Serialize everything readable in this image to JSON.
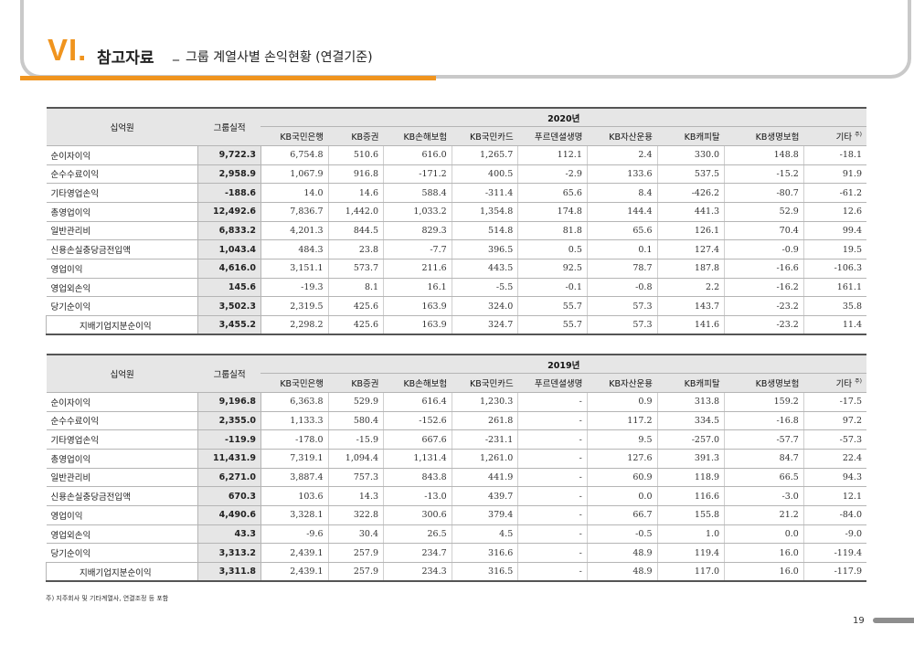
{
  "header": {
    "section_number": "VI.",
    "title": "참고자료",
    "separator": "_",
    "subtitle": "그룹 계열사별 손익현황 (연결기준)"
  },
  "columns": {
    "unit_label": "십억원",
    "group_label": "그룹실적",
    "companies": [
      "KB국민은행",
      "KB증권",
      "KB손해보험",
      "KB국민카드",
      "푸르덴셜생명",
      "KB자산운용",
      "KB캐피탈",
      "KB생명보험",
      "기타"
    ],
    "footnote_marker": "주)"
  },
  "tables": [
    {
      "year": "2020년",
      "rows": [
        {
          "label": "순이자이익",
          "group": "9,722.3",
          "values": [
            "6,754.8",
            "510.6",
            "616.0",
            "1,265.7",
            "112.1",
            "2.4",
            "330.0",
            "148.8",
            "-18.1"
          ]
        },
        {
          "label": "순수수료이익",
          "group": "2,958.9",
          "values": [
            "1,067.9",
            "916.8",
            "-171.2",
            "400.5",
            "-2.9",
            "133.6",
            "537.5",
            "-15.2",
            "91.9"
          ]
        },
        {
          "label": "기타영업손익",
          "group": "-188.6",
          "values": [
            "14.0",
            "14.6",
            "588.4",
            "-311.4",
            "65.6",
            "8.4",
            "-426.2",
            "-80.7",
            "-61.2"
          ]
        },
        {
          "label": "총영업이익",
          "group": "12,492.6",
          "values": [
            "7,836.7",
            "1,442.0",
            "1,033.2",
            "1,354.8",
            "174.8",
            "144.4",
            "441.3",
            "52.9",
            "12.6"
          ]
        },
        {
          "label": "일반관리비",
          "group": "6,833.2",
          "values": [
            "4,201.3",
            "844.5",
            "829.3",
            "514.8",
            "81.8",
            "65.6",
            "126.1",
            "70.4",
            "99.4"
          ]
        },
        {
          "label": "신용손실충당금전입액",
          "group": "1,043.4",
          "values": [
            "484.3",
            "23.8",
            "-7.7",
            "396.5",
            "0.5",
            "0.1",
            "127.4",
            "-0.9",
            "19.5"
          ]
        },
        {
          "label": "영업이익",
          "group": "4,616.0",
          "values": [
            "3,151.1",
            "573.7",
            "211.6",
            "443.5",
            "92.5",
            "78.7",
            "187.8",
            "-16.6",
            "-106.3"
          ]
        },
        {
          "label": "영업외손익",
          "group": "145.6",
          "values": [
            "-19.3",
            "8.1",
            "16.1",
            "-5.5",
            "-0.1",
            "-0.8",
            "2.2",
            "-16.2",
            "161.1"
          ]
        },
        {
          "label": "당기순이익",
          "group": "3,502.3",
          "values": [
            "2,319.5",
            "425.6",
            "163.9",
            "324.0",
            "55.7",
            "57.3",
            "143.7",
            "-23.2",
            "35.8"
          ]
        },
        {
          "label": "지배기업지분순이익",
          "group": "3,455.2",
          "values": [
            "2,298.2",
            "425.6",
            "163.9",
            "324.7",
            "55.7",
            "57.3",
            "141.6",
            "-23.2",
            "11.4"
          ],
          "indent": true
        }
      ]
    },
    {
      "year": "2019년",
      "rows": [
        {
          "label": "순이자이익",
          "group": "9,196.8",
          "values": [
            "6,363.8",
            "529.9",
            "616.4",
            "1,230.3",
            "-",
            "0.9",
            "313.8",
            "159.2",
            "-17.5"
          ]
        },
        {
          "label": "순수수료이익",
          "group": "2,355.0",
          "values": [
            "1,133.3",
            "580.4",
            "-152.6",
            "261.8",
            "-",
            "117.2",
            "334.5",
            "-16.8",
            "97.2"
          ]
        },
        {
          "label": "기타영업손익",
          "group": "-119.9",
          "values": [
            "-178.0",
            "-15.9",
            "667.6",
            "-231.1",
            "-",
            "9.5",
            "-257.0",
            "-57.7",
            "-57.3"
          ]
        },
        {
          "label": "총영업이익",
          "group": "11,431.9",
          "values": [
            "7,319.1",
            "1,094.4",
            "1,131.4",
            "1,261.0",
            "-",
            "127.6",
            "391.3",
            "84.7",
            "22.4"
          ]
        },
        {
          "label": "일반관리비",
          "group": "6,271.0",
          "values": [
            "3,887.4",
            "757.3",
            "843.8",
            "441.9",
            "-",
            "60.9",
            "118.9",
            "66.5",
            "94.3"
          ]
        },
        {
          "label": "신용손실충당금전입액",
          "group": "670.3",
          "values": [
            "103.6",
            "14.3",
            "-13.0",
            "439.7",
            "-",
            "0.0",
            "116.6",
            "-3.0",
            "12.1"
          ]
        },
        {
          "label": "영업이익",
          "group": "4,490.6",
          "values": [
            "3,328.1",
            "322.8",
            "300.6",
            "379.4",
            "-",
            "66.7",
            "155.8",
            "21.2",
            "-84.0"
          ]
        },
        {
          "label": "영업외손익",
          "group": "43.3",
          "values": [
            "-9.6",
            "30.4",
            "26.5",
            "4.5",
            "-",
            "-0.5",
            "1.0",
            "0.0",
            "-9.0"
          ]
        },
        {
          "label": "당기순이익",
          "group": "3,313.2",
          "values": [
            "2,439.1",
            "257.9",
            "234.7",
            "316.6",
            "-",
            "48.9",
            "119.4",
            "16.0",
            "-119.4"
          ]
        },
        {
          "label": "지배기업지분순이익",
          "group": "3,311.8",
          "values": [
            "2,439.1",
            "257.9",
            "234.3",
            "316.5",
            "-",
            "48.9",
            "117.0",
            "16.0",
            "-117.9"
          ],
          "indent": true
        }
      ]
    }
  ],
  "footnote": "주) 지주회사 및 기타계열사, 연결조정 등 포함",
  "page_number": "19",
  "colors": {
    "accent": "#f0941e",
    "frame": "#c9c9c9",
    "header_fill": "#e6e6e6"
  }
}
